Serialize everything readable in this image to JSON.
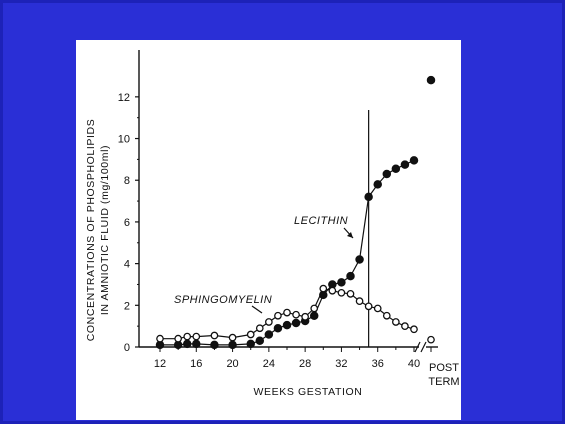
{
  "slide": {
    "background": "#2a2fd6",
    "paper": "#ffffff",
    "ink": "#111111"
  },
  "chart_data": {
    "type": "line",
    "xlabel": "WEEKS GESTATION",
    "ylabel_line1": "CONCENTRATIONS OF PHOSPHOLIPIDS",
    "ylabel_line2": "IN AMNIOTIC FLUID (mg/100ml)",
    "xlim": [
      12,
      42
    ],
    "ylim": [
      0,
      13
    ],
    "x_ticks": [
      12,
      16,
      20,
      24,
      28,
      32,
      36,
      40
    ],
    "y_ticks": [
      0,
      2,
      4,
      6,
      8,
      10,
      12
    ],
    "post_term_label_1": "POST",
    "post_term_label_2": "TERM",
    "vertical_line_x": 35,
    "series": [
      {
        "name": "LECITHIN",
        "marker": "filled",
        "x": [
          12,
          14,
          15,
          16,
          18,
          20,
          22,
          23,
          24,
          25,
          26,
          27,
          28,
          29,
          30,
          31,
          32,
          33,
          34,
          35,
          36,
          37,
          38,
          39,
          40
        ],
        "y": [
          0.1,
          0.1,
          0.15,
          0.15,
          0.1,
          0.1,
          0.15,
          0.3,
          0.6,
          0.9,
          1.05,
          1.15,
          1.25,
          1.5,
          2.5,
          3.0,
          3.1,
          3.4,
          4.2,
          7.2,
          7.8,
          8.3,
          8.55,
          8.75,
          8.95
        ],
        "post_term_y": 12.8
      },
      {
        "name": "SPHINGOMYELIN",
        "marker": "open",
        "x": [
          12,
          14,
          15,
          16,
          18,
          20,
          22,
          23,
          24,
          25,
          26,
          27,
          28,
          29,
          30,
          31,
          32,
          33,
          34,
          35,
          36,
          37,
          38,
          39,
          40
        ],
        "y": [
          0.4,
          0.4,
          0.5,
          0.5,
          0.55,
          0.45,
          0.6,
          0.9,
          1.2,
          1.5,
          1.65,
          1.55,
          1.45,
          1.85,
          2.8,
          2.7,
          2.6,
          2.55,
          2.2,
          1.95,
          1.85,
          1.5,
          1.2,
          1.0,
          0.85
        ],
        "post_term_y": 0.35
      }
    ]
  }
}
